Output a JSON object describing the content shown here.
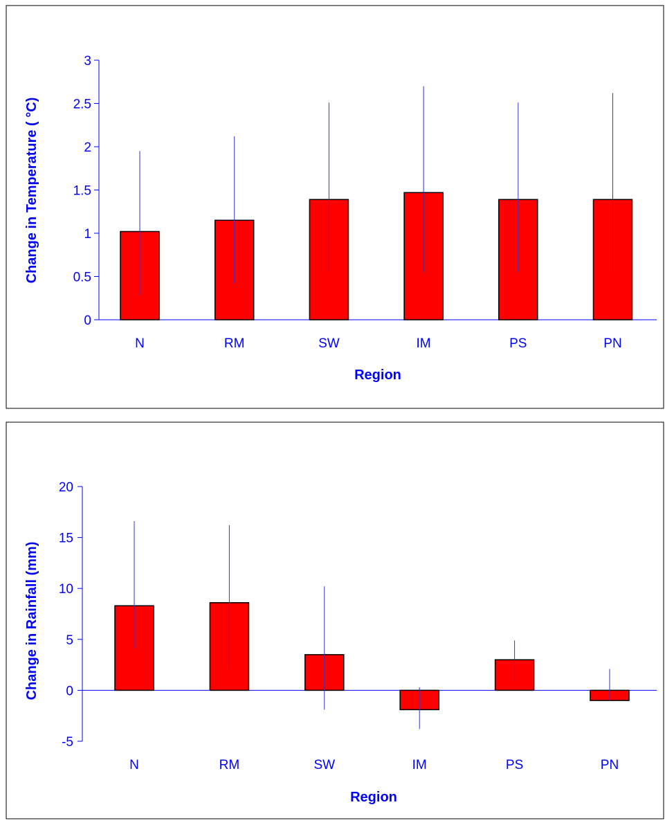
{
  "colors": {
    "bar_fill": "#ff0000",
    "bar_stroke": "#000000",
    "axis": "#0000ff",
    "error_bar": "#3333cc",
    "text": "#0000ff"
  },
  "chart_data": [
    {
      "type": "bar",
      "title": "",
      "xlabel": "Region",
      "ylabel": "Change in Temperature (  °C)",
      "categories": [
        "N",
        "RM",
        "SW",
        "IM",
        "PS",
        "PN"
      ],
      "values": [
        1.02,
        1.15,
        1.39,
        1.47,
        1.39,
        1.39
      ],
      "error_low": [
        0.29,
        0.42,
        0.55,
        0.55,
        0.55,
        0.55
      ],
      "error_high": [
        1.95,
        2.12,
        2.51,
        2.7,
        2.51,
        2.62
      ],
      "ylim": [
        0,
        3
      ],
      "yticks": [
        0,
        0.5,
        1,
        1.5,
        2,
        2.5,
        3
      ],
      "ytick_labels": [
        "0",
        "0.5",
        "1",
        "1.5",
        "2",
        "2.5",
        "3"
      ],
      "grid": false,
      "legend": "none"
    },
    {
      "type": "bar",
      "title": "",
      "xlabel": "Region",
      "ylabel": "Change in Rainfall (mm)",
      "categories": [
        "N",
        "RM",
        "SW",
        "IM",
        "PS",
        "PN"
      ],
      "values": [
        8.3,
        8.6,
        3.5,
        -1.9,
        3.0,
        -1.0
      ],
      "error_low": [
        4.1,
        2.1,
        -1.9,
        -3.8,
        0.9,
        -1.0
      ],
      "error_high": [
        16.6,
        16.2,
        10.2,
        0.3,
        4.9,
        2.1
      ],
      "ylim": [
        -5,
        20
      ],
      "yticks": [
        -5,
        0,
        5,
        10,
        15,
        20
      ],
      "ytick_labels": [
        "-5",
        "0",
        "5",
        "10",
        "15",
        "20"
      ],
      "grid": false,
      "legend": "none"
    }
  ]
}
